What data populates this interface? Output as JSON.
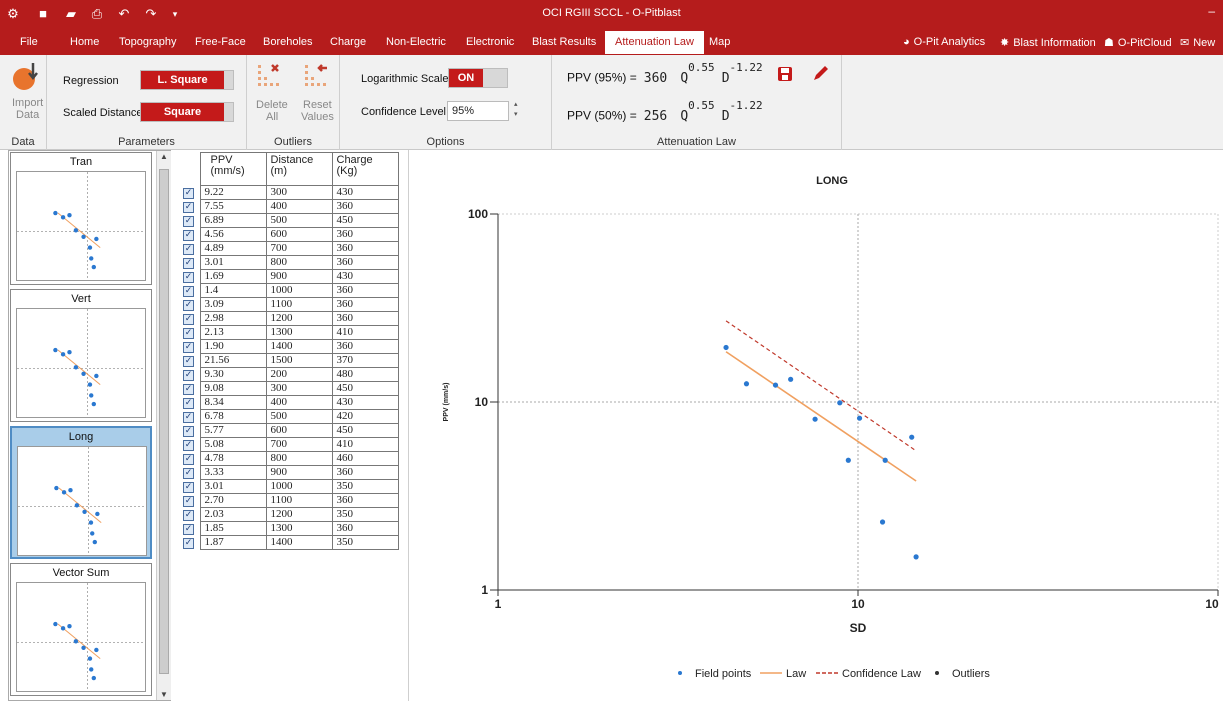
{
  "titlebar": {
    "title": "OCI RGIII SCCL - O-Pitblast",
    "minimize": "–"
  },
  "menu": {
    "items": [
      "File",
      "Home",
      "Topography",
      "Free-Face",
      "Boreholes",
      "Charge",
      "Non-Electric",
      "Electronic",
      "Blast Results",
      "Attenuation Law",
      "Map"
    ],
    "active_index": 9,
    "right": [
      "O-Pit Analytics",
      "Blast Information",
      "O-PitCloud",
      "New"
    ]
  },
  "ribbon": {
    "data_group": {
      "import_label_1": "Import",
      "import_label_2": "Data",
      "label": "Data"
    },
    "parameters_group": {
      "regression_label": "Regression",
      "regression_value": "L. Square",
      "scaled_distance_label": "Scaled Distance",
      "scaled_distance_value": "Square",
      "label": "Parameters"
    },
    "outliers_group": {
      "delete_1": "Delete",
      "delete_2": "All",
      "reset_1": "Reset",
      "reset_2": "Values",
      "label": "Outliers"
    },
    "options_group": {
      "log_scale_label": "Logarithmic Scale:",
      "log_scale_value": "ON",
      "confidence_label": "Confidence Level:",
      "confidence_value": "95%",
      "label": "Options"
    },
    "law_group": {
      "ppv95_label": "PPV (95%) =",
      "ppv95_k": "360",
      "ppv50_label": "PPV (50%) =",
      "ppv50_k": "256",
      "q": "Q",
      "d": "D",
      "q_exp": "0.55",
      "d_exp": "-1.22",
      "label": "Attenuation Law"
    }
  },
  "thumbnails": [
    {
      "title": "Tran",
      "active": false
    },
    {
      "title": "Vert",
      "active": false
    },
    {
      "title": "Long",
      "active": true
    },
    {
      "title": "Vector Sum",
      "active": false
    }
  ],
  "table": {
    "headers": [
      [
        "PPV",
        "(mm/s)"
      ],
      [
        "Distance",
        "(m)"
      ],
      [
        "Charge",
        "(Kg)"
      ]
    ],
    "rows": [
      [
        "9.22",
        "300",
        "430"
      ],
      [
        "7.55",
        "400",
        "360"
      ],
      [
        "6.89",
        "500",
        "450"
      ],
      [
        "4.56",
        "600",
        "360"
      ],
      [
        "4.89",
        "700",
        "360"
      ],
      [
        "3.01",
        "800",
        "360"
      ],
      [
        "1.69",
        "900",
        "430"
      ],
      [
        "1.4",
        "1000",
        "360"
      ],
      [
        "3.09",
        "1100",
        "360"
      ],
      [
        "2.98",
        "1200",
        "360"
      ],
      [
        "2.13",
        "1300",
        "410"
      ],
      [
        "1.90",
        "1400",
        "360"
      ],
      [
        "21.56",
        "1500",
        "370"
      ],
      [
        "9.30",
        "200",
        "480"
      ],
      [
        "9.08",
        "300",
        "450"
      ],
      [
        "8.34",
        "400",
        "430"
      ],
      [
        "6.78",
        "500",
        "420"
      ],
      [
        "5.77",
        "600",
        "450"
      ],
      [
        "5.08",
        "700",
        "410"
      ],
      [
        "4.78",
        "800",
        "460"
      ],
      [
        "3.33",
        "900",
        "360"
      ],
      [
        "3.01",
        "1000",
        "350"
      ],
      [
        "2.70",
        "1100",
        "360"
      ],
      [
        "2.03",
        "1200",
        "350"
      ],
      [
        "1.85",
        "1300",
        "360"
      ],
      [
        "1.87",
        "1400",
        "350"
      ]
    ]
  },
  "chart_data": {
    "type": "scatter",
    "title": "LONG",
    "xlabel": "SD",
    "ylabel": "PPV (mm/s)",
    "x_scale": "log",
    "y_scale": "log",
    "xlim": [
      1,
      100
    ],
    "ylim": [
      1,
      100
    ],
    "x_ticks": [
      "1",
      "10",
      "10"
    ],
    "y_ticks": [
      "100",
      "10",
      "1"
    ],
    "grid": true,
    "legend_position": "bottom",
    "legend": [
      "Field points",
      "Law",
      "Confidence Law",
      "Outliers"
    ],
    "colors": {
      "field": "#2a78d0",
      "law": "#f0a060",
      "confidence": "#c0392b",
      "outliers": "#333333"
    },
    "series": [
      {
        "name": "Field points",
        "points": [
          [
            4.3,
            19.5
          ],
          [
            4.9,
            12.5
          ],
          [
            5.9,
            12.3
          ],
          [
            6.5,
            13.2
          ],
          [
            7.6,
            8.1
          ],
          [
            8.9,
            9.9
          ],
          [
            9.4,
            4.9
          ],
          [
            10.1,
            8.2
          ],
          [
            11.7,
            2.3
          ],
          [
            11.9,
            4.9
          ],
          [
            14.1,
            6.5
          ],
          [
            14.5,
            1.5
          ]
        ]
      },
      {
        "name": "Law",
        "points": [
          [
            4.3,
            18.5
          ],
          [
            14.5,
            3.8
          ]
        ]
      },
      {
        "name": "Confidence Law",
        "points": [
          [
            4.3,
            27.0
          ],
          [
            14.5,
            5.5
          ]
        ]
      }
    ]
  },
  "thumb_points": [
    [
      0.3,
      0.38
    ],
    [
      0.36,
      0.42
    ],
    [
      0.41,
      0.4
    ],
    [
      0.46,
      0.54
    ],
    [
      0.52,
      0.6
    ],
    [
      0.57,
      0.7
    ],
    [
      0.62,
      0.62
    ],
    [
      0.58,
      0.8
    ],
    [
      0.6,
      0.88
    ]
  ]
}
